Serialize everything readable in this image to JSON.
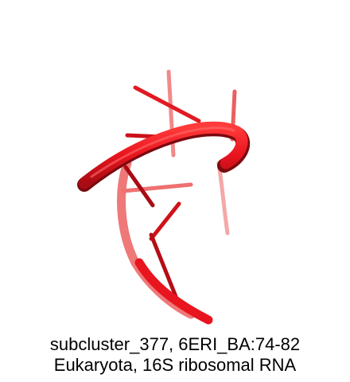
{
  "figure": {
    "subject": "RNA backbone cartoon",
    "structure_color": "#e8141e",
    "structure_shadow_color": "#7a0a10"
  },
  "caption": {
    "line1": "subcluster_377, 6ERI_BA:74-82",
    "line2": "Eukaryota, 16S ribosomal RNA"
  }
}
